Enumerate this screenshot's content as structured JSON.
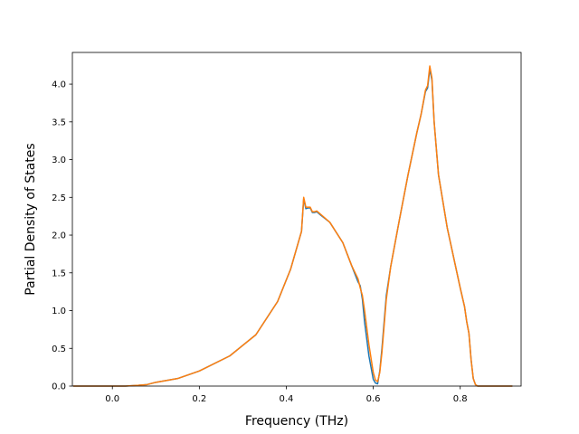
{
  "chart_data": {
    "type": "line",
    "title": "",
    "xlabel": "Frequency (THz)",
    "ylabel": "Partial Density of States",
    "xlim": [
      -0.092,
      0.94
    ],
    "ylim": [
      0,
      4.42
    ],
    "xticks": [
      0.0,
      0.2,
      0.4,
      0.6,
      0.8
    ],
    "xtick_labels": [
      "0.0",
      "0.2",
      "0.4",
      "0.6",
      "0.8"
    ],
    "yticks": [
      0.0,
      0.5,
      1.0,
      1.5,
      2.0,
      2.5,
      3.0,
      3.5,
      4.0
    ],
    "ytick_labels": [
      "0.0",
      "0.5",
      "1.0",
      "1.5",
      "2.0",
      "2.5",
      "3.0",
      "3.5",
      "4.0"
    ],
    "grid": false,
    "legend": "none",
    "series": [
      {
        "color": "#1f77b4",
        "x": [
          -0.09,
          -0.05,
          0.0,
          0.03,
          0.06,
          0.08,
          0.1,
          0.15,
          0.2,
          0.27,
          0.33,
          0.38,
          0.41,
          0.43,
          0.435,
          0.44,
          0.445,
          0.45,
          0.455,
          0.46,
          0.465,
          0.47,
          0.48,
          0.5,
          0.53,
          0.55,
          0.565,
          0.57,
          0.575,
          0.58,
          0.59,
          0.6,
          0.605,
          0.61,
          0.615,
          0.62,
          0.63,
          0.64,
          0.66,
          0.68,
          0.7,
          0.71,
          0.72,
          0.725,
          0.73,
          0.735,
          0.74,
          0.75,
          0.77,
          0.8,
          0.81,
          0.815,
          0.82,
          0.825,
          0.83,
          0.835,
          0.84,
          0.86,
          0.9,
          0.92
        ],
        "y": [
          0.0,
          0.0,
          0.0,
          0.0,
          0.01,
          0.02,
          0.05,
          0.1,
          0.2,
          0.4,
          0.68,
          1.12,
          1.55,
          1.95,
          2.05,
          2.48,
          2.35,
          2.36,
          2.36,
          2.3,
          2.3,
          2.31,
          2.26,
          2.17,
          1.9,
          1.6,
          1.38,
          1.33,
          1.15,
          0.85,
          0.4,
          0.09,
          0.04,
          0.03,
          0.2,
          0.5,
          1.2,
          1.58,
          2.2,
          2.8,
          3.35,
          3.6,
          3.9,
          3.95,
          4.2,
          4.05,
          3.5,
          2.8,
          2.1,
          1.3,
          1.05,
          0.85,
          0.7,
          0.35,
          0.1,
          0.02,
          0.0,
          0.0,
          0.0,
          0.0
        ]
      },
      {
        "color": "#ff7f0e",
        "x": [
          -0.09,
          -0.05,
          0.0,
          0.03,
          0.06,
          0.08,
          0.1,
          0.15,
          0.2,
          0.27,
          0.33,
          0.38,
          0.41,
          0.43,
          0.435,
          0.44,
          0.445,
          0.45,
          0.455,
          0.46,
          0.465,
          0.47,
          0.48,
          0.5,
          0.53,
          0.55,
          0.565,
          0.57,
          0.575,
          0.58,
          0.59,
          0.6,
          0.605,
          0.61,
          0.615,
          0.62,
          0.63,
          0.64,
          0.66,
          0.68,
          0.7,
          0.71,
          0.72,
          0.725,
          0.73,
          0.735,
          0.74,
          0.75,
          0.77,
          0.8,
          0.81,
          0.815,
          0.82,
          0.825,
          0.83,
          0.835,
          0.84,
          0.86,
          0.9,
          0.92
        ],
        "y": [
          0.0,
          0.0,
          0.0,
          0.0,
          0.01,
          0.02,
          0.05,
          0.1,
          0.2,
          0.4,
          0.68,
          1.12,
          1.55,
          1.95,
          2.05,
          2.5,
          2.37,
          2.37,
          2.37,
          2.31,
          2.31,
          2.32,
          2.27,
          2.17,
          1.9,
          1.6,
          1.42,
          1.3,
          1.2,
          1.0,
          0.55,
          0.18,
          0.08,
          0.06,
          0.18,
          0.45,
          1.15,
          1.58,
          2.2,
          2.8,
          3.35,
          3.6,
          3.92,
          3.98,
          4.24,
          4.08,
          3.5,
          2.8,
          2.1,
          1.3,
          1.05,
          0.85,
          0.7,
          0.35,
          0.1,
          0.02,
          0.0,
          0.0,
          0.0,
          0.0
        ]
      }
    ]
  }
}
